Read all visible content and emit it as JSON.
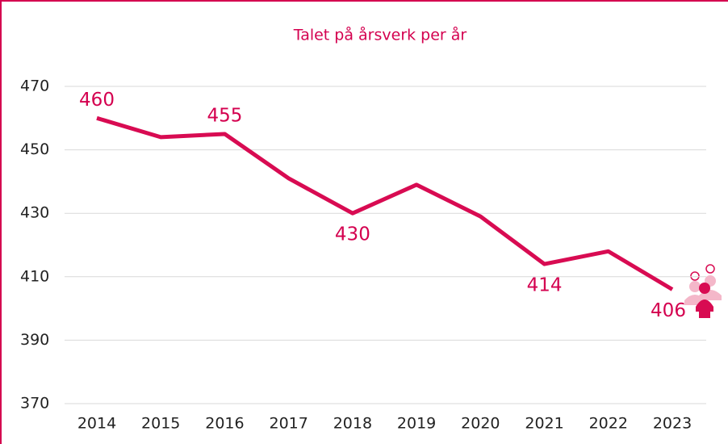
{
  "chart_data": {
    "type": "line",
    "title": "Talet på årsverk per år",
    "categories": [
      "2014",
      "2015",
      "2016",
      "2017",
      "2018",
      "2019",
      "2020",
      "2021",
      "2022",
      "2023"
    ],
    "values": [
      460,
      454,
      455,
      441,
      430,
      439,
      429,
      414,
      418,
      406
    ],
    "value_labels": [
      "460",
      null,
      "455",
      null,
      "430",
      null,
      null,
      "414",
      null,
      "406"
    ],
    "color": "#d80b52",
    "ylim": [
      370,
      470
    ],
    "yticks": [
      370,
      390,
      410,
      430,
      450,
      470
    ],
    "grid": true
  }
}
